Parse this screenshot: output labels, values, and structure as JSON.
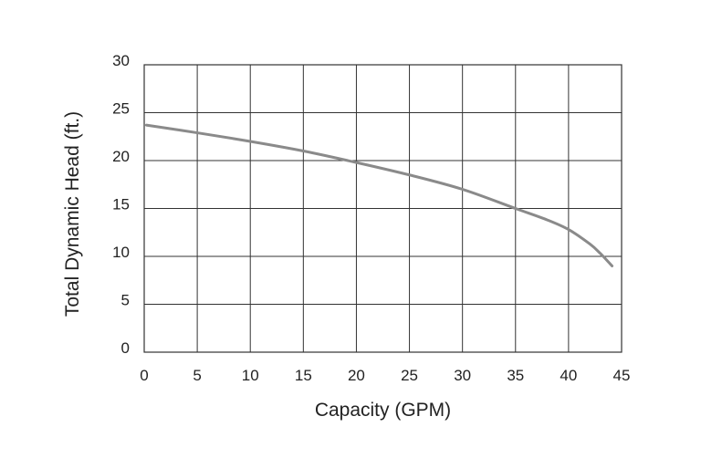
{
  "chart_data": {
    "type": "line",
    "title": "",
    "xlabel": "Capacity (GPM)",
    "ylabel": "Total Dynamic Head (ft.)",
    "xlim": [
      0,
      45
    ],
    "ylim": [
      0,
      30
    ],
    "x_ticks": [
      0,
      5,
      10,
      15,
      20,
      25,
      30,
      35,
      40,
      45
    ],
    "y_ticks": [
      0,
      5,
      10,
      15,
      20,
      25,
      30
    ],
    "grid": true,
    "series": [
      {
        "name": "",
        "color": "#8a8a8a",
        "x": [
          0.2,
          5,
          10,
          15,
          20,
          25,
          30,
          35,
          38,
          40,
          42,
          43,
          44.1
        ],
        "y": [
          23.7,
          22.9,
          22.0,
          21.0,
          19.8,
          18.5,
          17.0,
          15.0,
          13.8,
          12.8,
          11.3,
          10.3,
          9.0
        ]
      }
    ]
  }
}
